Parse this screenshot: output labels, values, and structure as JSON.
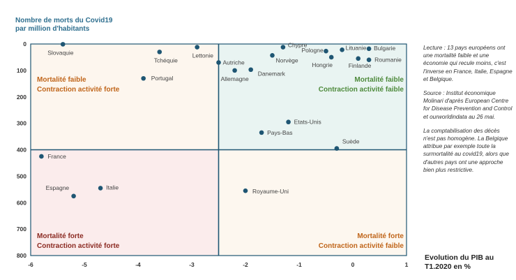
{
  "y_title": "Nombre de morts du Covid19\npar million d'habitants",
  "x_title": "Evolution du PIB au\nT1.2020 en %",
  "notes": [
    "Lecture : 13 pays européens ont une mortalité faible et une économie qui recule moins, c'est l'inverse en France, Italie, Espagne et Belgique.",
    "Source : Institut économique Molinari d'après European Centre for Disease Prevention and Control et ourworldindata au 26 mai.",
    "La comptabilisation des décès n'est pas homogène. La Belgique attribue par exemple toute la surmortalité au covid19, alors que d'autres pays ont une approche bien plus restrictive."
  ],
  "quadrants": [
    {
      "line1": "Mortalité faible",
      "line2": "Contraction activité forte",
      "color": "#c0651a",
      "position": "top-left"
    },
    {
      "line1": "Mortalité faible",
      "line2": "Contraction activité faible",
      "color": "#4e8a3c",
      "position": "top-right"
    },
    {
      "line1": "Mortalité forte",
      "line2": "Contraction activité forte",
      "color": "#8b2a22",
      "position": "bottom-left"
    },
    {
      "line1": "Mortalité forte",
      "line2": "Contraction activité faible",
      "color": "#c0651a",
      "position": "bottom-right"
    }
  ],
  "colors": {
    "point": "#1f5673",
    "divider": "#1f5673",
    "quadrant_top_left": "#fdf6ee",
    "quadrant_top_right": "#e9f4f2",
    "quadrant_bottom_left": "#fbecec",
    "quadrant_bottom_right": "#fdf7ef"
  },
  "chart_data": {
    "type": "scatter",
    "xlim": [
      -6,
      1
    ],
    "ylim": [
      0,
      800
    ],
    "y_inverted": true,
    "x_ticks": [
      -6,
      -5,
      -4,
      -3,
      -2,
      -1,
      0,
      1
    ],
    "y_ticks": [
      0,
      100,
      200,
      300,
      400,
      500,
      600,
      700,
      800
    ],
    "quadrant_split": {
      "x": -2.5,
      "y": 400
    },
    "grid": false,
    "points": [
      {
        "label": "Slovaquie",
        "x": -5.4,
        "y": 1
      },
      {
        "label": "Tchéquie",
        "x": -3.6,
        "y": 30
      },
      {
        "label": "Lettonie",
        "x": -2.9,
        "y": 12
      },
      {
        "label": "Portugal",
        "x": -3.9,
        "y": 130
      },
      {
        "label": "Autriche",
        "x": -2.5,
        "y": 70
      },
      {
        "label": "Allemagne",
        "x": -2.2,
        "y": 100
      },
      {
        "label": "Danemark",
        "x": -1.9,
        "y": 97
      },
      {
        "label": "Chypre",
        "x": -1.3,
        "y": 12
      },
      {
        "label": "Norvège",
        "x": -1.5,
        "y": 43
      },
      {
        "label": "Pologne",
        "x": -0.5,
        "y": 27
      },
      {
        "label": "Hongrie",
        "x": -0.4,
        "y": 50
      },
      {
        "label": "Lituanie",
        "x": -0.2,
        "y": 22
      },
      {
        "label": "Bulgarie",
        "x": 0.3,
        "y": 18
      },
      {
        "label": "Finlande",
        "x": 0.1,
        "y": 55
      },
      {
        "label": "Roumanie",
        "x": 0.3,
        "y": 60
      },
      {
        "label": "Etats-Unis",
        "x": -1.2,
        "y": 295
      },
      {
        "label": "Pays-Bas",
        "x": -1.7,
        "y": 335
      },
      {
        "label": "Suède",
        "x": -0.3,
        "y": 395
      },
      {
        "label": "France",
        "x": -5.8,
        "y": 425
      },
      {
        "label": "Italie",
        "x": -4.7,
        "y": 545
      },
      {
        "label": "Espagne",
        "x": -5.2,
        "y": 575
      },
      {
        "label": "Royaume-Uni",
        "x": -2.0,
        "y": 555
      }
    ]
  }
}
